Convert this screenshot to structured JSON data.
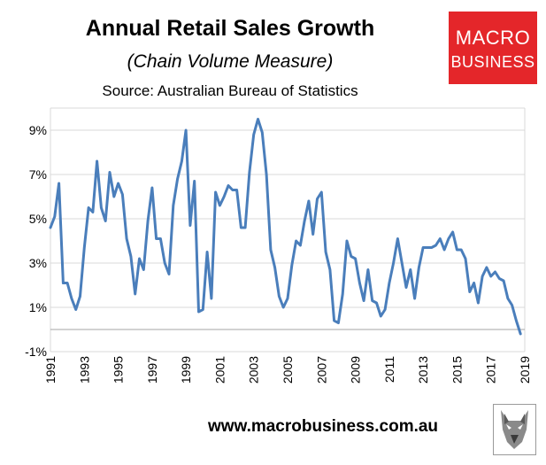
{
  "header": {
    "title": "Annual Retail Sales Growth",
    "subtitle": "(Chain Volume Measure)",
    "source": "Source: Australian Bureau of Statistics"
  },
  "logo": {
    "line1": "MACRO",
    "line2": "BUSINESS"
  },
  "footer": {
    "website": "www.macrobusiness.com.au"
  },
  "colors": {
    "line": "#4a7ebb",
    "grid": "#d9d9d9",
    "axis": "#a6a6a6",
    "logo_bg": "#e4262a"
  },
  "chart_data": {
    "type": "line",
    "title": "Annual Retail Sales Growth",
    "subtitle": "(Chain Volume Measure)",
    "xlabel": "",
    "ylabel": "",
    "xlim": [
      1991,
      2019
    ],
    "ylim": [
      -1,
      10
    ],
    "grid": true,
    "y_ticks": [
      {
        "value": -1,
        "label": "-1%"
      },
      {
        "value": 1,
        "label": "1%"
      },
      {
        "value": 3,
        "label": "3%"
      },
      {
        "value": 5,
        "label": "5%"
      },
      {
        "value": 7,
        "label": "7%"
      },
      {
        "value": 9,
        "label": "9%"
      }
    ],
    "x_ticks": [
      {
        "value": 1991,
        "label": "1991"
      },
      {
        "value": 1993,
        "label": "1993"
      },
      {
        "value": 1995,
        "label": "1995"
      },
      {
        "value": 1997,
        "label": "1997"
      },
      {
        "value": 1999,
        "label": "1999"
      },
      {
        "value": 2001,
        "label": "2001"
      },
      {
        "value": 2003,
        "label": "2003"
      },
      {
        "value": 2005,
        "label": "2005"
      },
      {
        "value": 2007,
        "label": "2007"
      },
      {
        "value": 2009,
        "label": "2009"
      },
      {
        "value": 2011,
        "label": "2011"
      },
      {
        "value": 2013,
        "label": "2013"
      },
      {
        "value": 2015,
        "label": "2015"
      },
      {
        "value": 2017,
        "label": "2017"
      },
      {
        "value": 2019,
        "label": "2019"
      }
    ],
    "series": [
      {
        "name": "Annual Retail Sales Growth",
        "x": [
          1991.0,
          1991.25,
          1991.5,
          1991.75,
          1992.0,
          1992.25,
          1992.5,
          1992.75,
          1993.0,
          1993.25,
          1993.5,
          1993.75,
          1994.0,
          1994.25,
          1994.5,
          1994.75,
          1995.0,
          1995.25,
          1995.5,
          1995.75,
          1996.0,
          1996.25,
          1996.5,
          1996.75,
          1997.0,
          1997.25,
          1997.5,
          1997.75,
          1998.0,
          1998.25,
          1998.5,
          1998.75,
          1999.0,
          1999.25,
          1999.5,
          1999.75,
          2000.0,
          2000.25,
          2000.5,
          2000.75,
          2001.0,
          2001.25,
          2001.5,
          2001.75,
          2002.0,
          2002.25,
          2002.5,
          2002.75,
          2003.0,
          2003.25,
          2003.5,
          2003.75,
          2004.0,
          2004.25,
          2004.5,
          2004.75,
          2005.0,
          2005.25,
          2005.5,
          2005.75,
          2006.0,
          2006.25,
          2006.5,
          2006.75,
          2007.0,
          2007.25,
          2007.5,
          2007.75,
          2008.0,
          2008.25,
          2008.5,
          2008.75,
          2009.0,
          2009.25,
          2009.5,
          2009.75,
          2010.0,
          2010.25,
          2010.5,
          2010.75,
          2011.0,
          2011.25,
          2011.5,
          2011.75,
          2012.0,
          2012.25,
          2012.5,
          2012.75,
          2013.0,
          2013.25,
          2013.5,
          2013.75,
          2014.0,
          2014.25,
          2014.5,
          2014.75,
          2015.0,
          2015.25,
          2015.5,
          2015.75,
          2016.0,
          2016.25,
          2016.5,
          2016.75,
          2017.0,
          2017.25,
          2017.5,
          2017.75,
          2018.0,
          2018.25,
          2018.5,
          2018.75
        ],
        "values": [
          4.6,
          5.1,
          6.6,
          2.1,
          2.1,
          1.4,
          0.9,
          1.5,
          3.7,
          5.5,
          5.3,
          7.6,
          5.5,
          4.9,
          7.1,
          6.0,
          6.6,
          6.1,
          4.1,
          3.3,
          1.6,
          3.2,
          2.7,
          4.9,
          6.4,
          4.1,
          4.1,
          3.0,
          2.5,
          5.6,
          6.8,
          7.6,
          9.0,
          4.7,
          6.7,
          0.8,
          0.9,
          3.5,
          1.4,
          6.2,
          5.6,
          6.0,
          6.5,
          6.3,
          6.3,
          4.6,
          4.6,
          7.1,
          8.8,
          9.5,
          8.9,
          7.0,
          3.6,
          2.8,
          1.5,
          1.0,
          1.4,
          2.9,
          4.0,
          3.8,
          4.9,
          5.8,
          4.3,
          5.9,
          6.2,
          3.5,
          2.7,
          0.4,
          0.3,
          1.6,
          4.0,
          3.3,
          3.2,
          2.1,
          1.3,
          2.7,
          1.3,
          1.2,
          0.6,
          0.9,
          2.1,
          3.0,
          4.1,
          3.0,
          1.9,
          2.7,
          1.4,
          2.8,
          3.7,
          3.7,
          3.7,
          3.8,
          4.1,
          3.6,
          4.1,
          4.4,
          3.6,
          3.6,
          3.2,
          1.7,
          2.1,
          1.2,
          2.4,
          2.8,
          2.4,
          2.6,
          2.3,
          2.2,
          1.4,
          1.1,
          0.4,
          -0.2
        ]
      }
    ]
  }
}
